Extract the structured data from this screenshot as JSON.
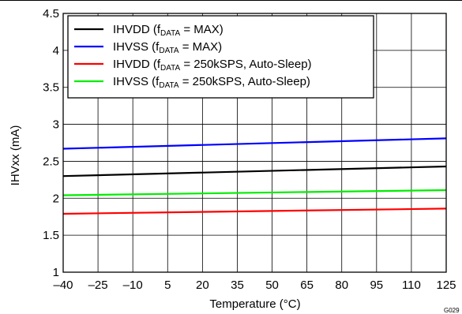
{
  "chart_data": {
    "type": "line",
    "xlabel": "Temperature (°C)",
    "ylabel": "IHVxx (mA)",
    "xlim": [
      -40,
      125
    ],
    "ylim": [
      1,
      4.5
    ],
    "x_ticks": [
      -40,
      -25,
      -10,
      5,
      20,
      35,
      50,
      65,
      80,
      95,
      110,
      125
    ],
    "x_tick_labels": [
      "–40",
      "–25",
      "–10",
      "5",
      "20",
      "35",
      "50",
      "65",
      "80",
      "95",
      "110",
      "125"
    ],
    "y_ticks": [
      1,
      1.5,
      2,
      2.5,
      3,
      3.5,
      4,
      4.5
    ],
    "y_tick_labels": [
      "1",
      "1.5",
      "2",
      "2.5",
      "3",
      "3.5",
      "4",
      "4.5"
    ],
    "grid": true,
    "legend_position": "top-left",
    "figure_id": "G029",
    "series": [
      {
        "name": "IHVDD (fDATA = MAX)",
        "legend": {
          "main": "IHVDD (f",
          "sub": "DATA",
          "tail": " = MAX)"
        },
        "color": "#000000",
        "x": [
          -40,
          125
        ],
        "y": [
          2.3,
          2.43
        ]
      },
      {
        "name": "IHVSS (fDATA = MAX)",
        "legend": {
          "main": "IHVSS (f",
          "sub": "DATA",
          "tail": " = MAX)"
        },
        "color": "#0000ff",
        "x": [
          -40,
          125
        ],
        "y": [
          2.67,
          2.81
        ]
      },
      {
        "name": "IHVDD (fDATA = 250kSPS, Auto-Sleep)",
        "legend": {
          "main": "IHVDD (f",
          "sub": "DATA",
          "tail": " = 250kSPS, Auto-Sleep)"
        },
        "color": "#ff0000",
        "x": [
          -40,
          125
        ],
        "y": [
          1.79,
          1.86
        ]
      },
      {
        "name": "IHVSS (fDATA = 250kSPS, Auto-Sleep)",
        "legend": {
          "main": "IHVSS (f",
          "sub": "DATA",
          "tail": " = 250kSPS, Auto-Sleep)"
        },
        "color": "#00ee00",
        "x": [
          -40,
          125
        ],
        "y": [
          2.04,
          2.11
        ]
      }
    ]
  }
}
